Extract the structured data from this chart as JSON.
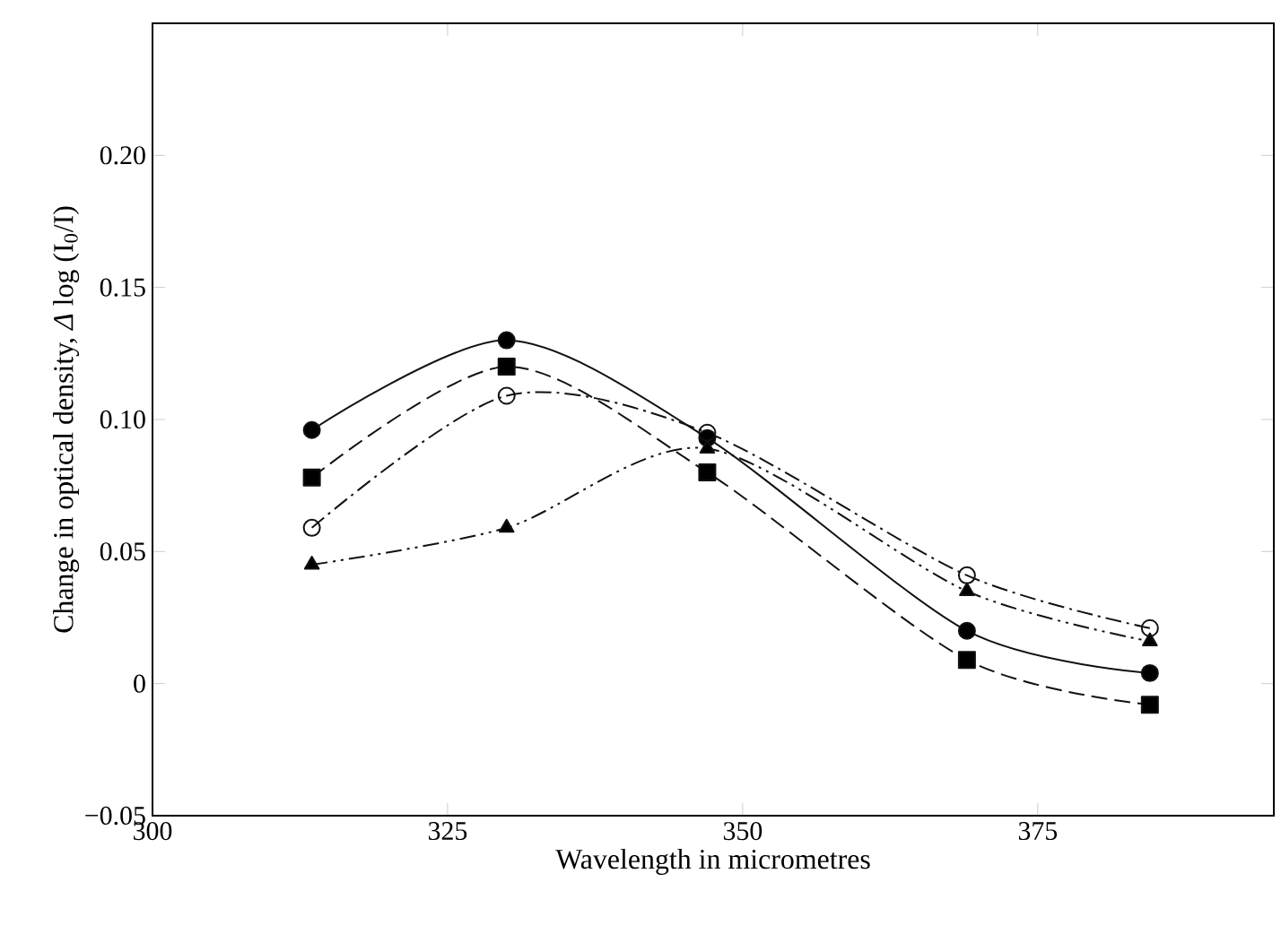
{
  "chart_data": {
    "type": "line",
    "xlabel": "Wavelength in micrometres",
    "ylabel": "Change in optical density, *Δ* log (I$_{0}$/I)",
    "x": [
      313.5,
      330,
      347,
      369,
      384.5
    ],
    "series": [
      {
        "color": "#111111",
        "marker": "circle",
        "line_style": "solid",
        "values": [
          0.096,
          0.13,
          0.093,
          0.02,
          0.004
        ]
      },
      {
        "color": "#111111",
        "marker": "square",
        "line_style": "dashed",
        "values": [
          0.078,
          0.12,
          0.08,
          0.009,
          -0.008
        ]
      },
      {
        "color": "#111111",
        "marker": "open circle",
        "line_style": "dashdot",
        "values": [
          0.059,
          0.109,
          0.095,
          0.041,
          0.021
        ]
      },
      {
        "color": "#111111",
        "marker": "triangle",
        "line_style": "dashdotdot",
        "values": [
          0.045,
          0.059,
          0.089,
          0.035,
          0.016
        ]
      }
    ],
    "xlim": [
      300,
      395
    ],
    "ylim": [
      -0.05,
      0.25
    ],
    "xticks": [
      300,
      325,
      350,
      375
    ],
    "yticks": [
      {
        "value": -0.05,
        "label": "−0.05"
      },
      0,
      {
        "value": 0.05,
        "label": "0.05"
      },
      {
        "value": 0.1,
        "label": "0.10"
      },
      {
        "value": 0.15,
        "label": "0.15"
      },
      {
        "value": 0.2,
        "label": "0.20"
      }
    ],
    "grid": false
  }
}
